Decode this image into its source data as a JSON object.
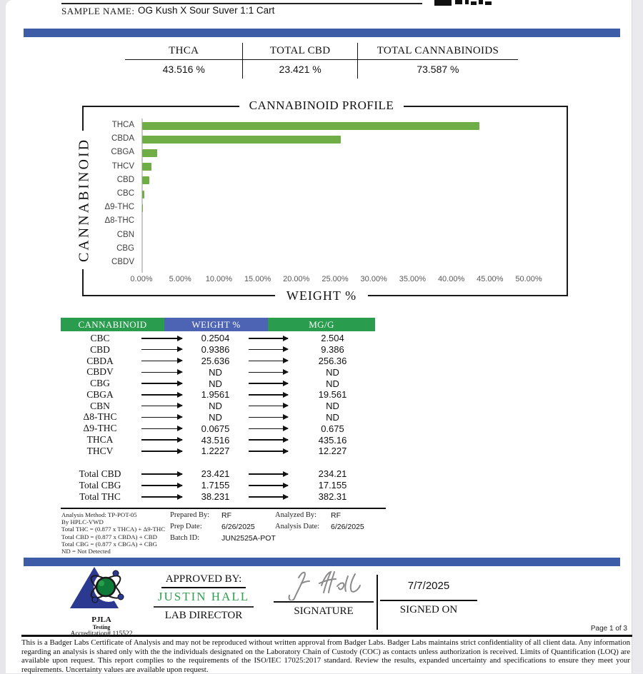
{
  "header": {
    "sample_label": "SAMPLE NAME:",
    "sample_value": "OG Kush X Sour Suver 1:1 Cart",
    "logo_fragment": "clipped-lab-logo"
  },
  "summary": {
    "columns": [
      {
        "label": "THCA",
        "value": "43.516 %"
      },
      {
        "label": "TOTAL CBD",
        "value": "23.421 %"
      },
      {
        "label": "TOTAL CANNABINOIDS",
        "value": "73.587 %"
      }
    ]
  },
  "chart_data": {
    "type": "bar",
    "orientation": "horizontal",
    "title": "CANNABINOID PROFILE",
    "xlabel": "WEIGHT %",
    "ylabel": "CANNABINOID",
    "categories": [
      "THCA",
      "CBDA",
      "CBGA",
      "THCV",
      "CBD",
      "CBC",
      "Δ9-THC",
      "Δ8-THC",
      "CBN",
      "CBG",
      "CBDV"
    ],
    "values": [
      43.516,
      25.636,
      1.9561,
      1.2227,
      0.9386,
      0.2504,
      0.0675,
      0,
      0,
      0,
      0
    ],
    "xlim": [
      0,
      50
    ],
    "x_ticks": [
      "0.00%",
      "5.00%",
      "10.00%",
      "15.00%",
      "20.00%",
      "25.00%",
      "30.00%",
      "35.00%",
      "40.00%",
      "45.00%",
      "50.00%"
    ],
    "bar_color": "#6fad47",
    "grid": false,
    "legend": "none"
  },
  "results_table": {
    "headers": [
      "CANNABINOID",
      "WEIGHT %",
      "MG/G"
    ],
    "rows": [
      {
        "cannabinoid": "CBC",
        "weight_pct": "0.2504",
        "mg_g": "2.504"
      },
      {
        "cannabinoid": "CBD",
        "weight_pct": "0.9386",
        "mg_g": "9.386"
      },
      {
        "cannabinoid": "CBDA",
        "weight_pct": "25.636",
        "mg_g": "256.36"
      },
      {
        "cannabinoid": "CBDV",
        "weight_pct": "ND",
        "mg_g": "ND"
      },
      {
        "cannabinoid": "CBG",
        "weight_pct": "ND",
        "mg_g": "ND"
      },
      {
        "cannabinoid": "CBGA",
        "weight_pct": "1.9561",
        "mg_g": "19.561"
      },
      {
        "cannabinoid": "CBN",
        "weight_pct": "ND",
        "mg_g": "ND"
      },
      {
        "cannabinoid": "Δ8-THC",
        "weight_pct": "ND",
        "mg_g": "ND"
      },
      {
        "cannabinoid": "Δ9-THC",
        "weight_pct": "0.0675",
        "mg_g": "0.675"
      },
      {
        "cannabinoid": "THCA",
        "weight_pct": "43.516",
        "mg_g": "435.16"
      },
      {
        "cannabinoid": "THCV",
        "weight_pct": "1.2227",
        "mg_g": "12.227"
      }
    ],
    "totals": [
      {
        "cannabinoid": "Total CBD",
        "weight_pct": "23.421",
        "mg_g": "234.21"
      },
      {
        "cannabinoid": "Total CBG",
        "weight_pct": "1.7155",
        "mg_g": "17.155"
      },
      {
        "cannabinoid": "Total THC",
        "weight_pct": "38.231",
        "mg_g": "382.31"
      }
    ]
  },
  "method_notes": {
    "lines": [
      "Analysis Method: TP-POT-05",
      "By HPLC-VWD",
      "Total THC = (0.877 x  THCA) + Δ9-THC",
      "Total CBD = (0.877 x  CBDA) + CBD",
      "Total CBG = (0.877 x  CBGA) + CBG",
      "ND = Not Detected"
    ],
    "prepared_by_label": "Prepared By:",
    "prepared_by": "RF",
    "prep_date_label": "Prep Date:",
    "prep_date": "6/26/2025",
    "batch_id_label": "Batch ID:",
    "batch_id": "JUN2525A-POT",
    "analyzed_by_label": "Analyzed By:",
    "analyzed_by": "RF",
    "analysis_date_label": "Analysis Date:",
    "analysis_date": "6/26/2025"
  },
  "footer": {
    "accreditation_org": "PJLA",
    "accreditation_sub": "Testing",
    "accreditation_number": "Accreditation# 115522",
    "approved_by_label": "APPROVED BY:",
    "approved_by_name": "JUSTIN HALL",
    "approved_by_title": "LAB DIRECTOR",
    "signature_label": "SIGNATURE",
    "signed_on_label": "SIGNED ON",
    "signed_on_date": "7/7/2025",
    "page_number": "Page 1 of 3"
  },
  "disclaimer": "This is a Badger Labs Certificate of Analysis and may not be reproduced without written approval from Badger Labs. Badger Labs maintains strict confidentiality of all client data. Any information regarding an analysis is shared only with the the individuals designated on the Laboratory Chain of Custody (COC) as contacts unless authorization is received. Limits of Quantification (LOQ) are available upon request. This report complies to the requirements of the ISO/IEC 17025:2017 standard. Review the results, expanded uncertainty and specifications to ensure they meet your requirements. Uncertainty values are available upon request.",
  "colors": {
    "accent_blue": "#3c5ca7",
    "table_header_green": "#2a9c4d",
    "table_header_blue": "#4d63b3",
    "bar_green": "#6fad47",
    "approved_name_green": "#2f9e4f"
  }
}
